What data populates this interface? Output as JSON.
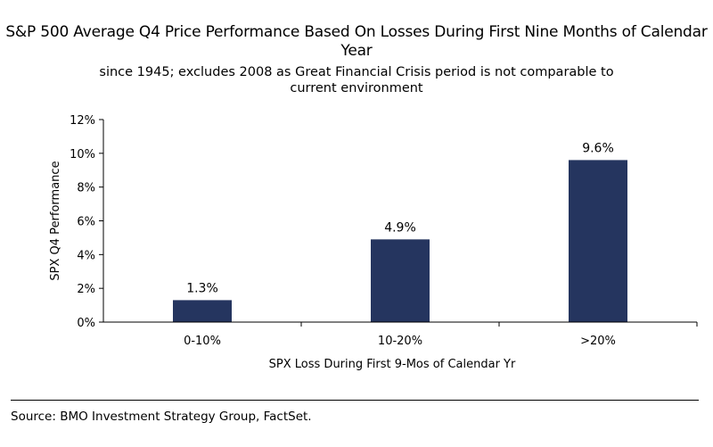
{
  "chart_data": {
    "type": "bar",
    "title": "S&P 500 Average Q4 Price Performance Based On Losses During First Nine Months of Calendar Year",
    "subtitle": "since 1945; excludes 2008 as Great Financial Crisis period is not comparable to current environment",
    "xlabel": "SPX Loss During First 9-Mos of Calendar Yr",
    "ylabel": "SPX Q4 Performance",
    "categories": [
      "0-10%",
      "10-20%",
      ">20%"
    ],
    "values": [
      1.3,
      4.9,
      9.6
    ],
    "value_labels": [
      "1.3%",
      "4.9%",
      "9.6%"
    ],
    "ylim": [
      0,
      12
    ],
    "yticks": [
      0,
      2,
      4,
      6,
      8,
      10,
      12
    ],
    "ytick_labels": [
      "0%",
      "2%",
      "4%",
      "6%",
      "8%",
      "10%",
      "12%"
    ],
    "grid": false,
    "bar_color": "#25355f"
  },
  "footer": {
    "source": "Source: BMO Investment Strategy Group, FactSet."
  }
}
